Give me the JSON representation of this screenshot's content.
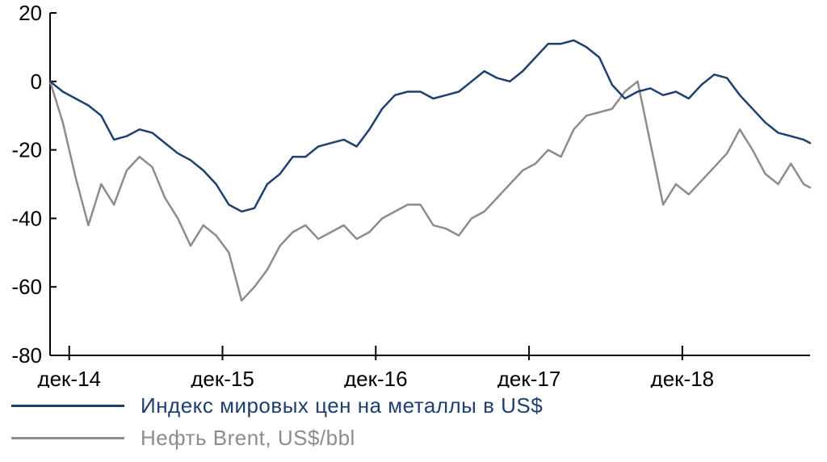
{
  "chart_data": {
    "type": "line",
    "ylim": [
      -80,
      20
    ],
    "yticks": [
      20,
      0,
      -20,
      -40,
      -60,
      -80
    ],
    "xlim": [
      0,
      59.5
    ],
    "xticks": [
      {
        "label": "дек-14",
        "x": 1.5
      },
      {
        "label": "дек-15",
        "x": 13.5
      },
      {
        "label": "дек-16",
        "x": 25.5
      },
      {
        "label": "дек-17",
        "x": 37.5
      },
      {
        "label": "дек-18",
        "x": 49.5
      }
    ],
    "grid": false,
    "legend": "bottom-left",
    "series": [
      {
        "name": "Индекс мировых цен на металлы в US$",
        "color": "#1f3f6e",
        "x": [
          0,
          1,
          2,
          3,
          4,
          5,
          6,
          7,
          8,
          9,
          10,
          11,
          12,
          13,
          14,
          15,
          16,
          17,
          18,
          19,
          20,
          21,
          22,
          23,
          24,
          25,
          26,
          27,
          28,
          29,
          30,
          31,
          32,
          33,
          34,
          35,
          36,
          37,
          38,
          39,
          40,
          41,
          42,
          43,
          44,
          45,
          46,
          47,
          48,
          49,
          50,
          51,
          52,
          53,
          54,
          55,
          56,
          57,
          58,
          59,
          59.5
        ],
        "values": [
          0,
          -3,
          -5,
          -7,
          -10,
          -17,
          -16,
          -14,
          -15,
          -18,
          -21,
          -23,
          -26,
          -30,
          -36,
          -38,
          -37,
          -30,
          -27,
          -22,
          -22,
          -19,
          -18,
          -17,
          -19,
          -14,
          -8,
          -4,
          -3,
          -3,
          -5,
          -4,
          -3,
          0,
          3,
          1,
          0,
          3,
          7,
          11,
          11,
          12,
          10,
          7,
          -1,
          -5,
          -3,
          -2,
          -4,
          -3,
          -5,
          -1,
          2,
          1,
          -4,
          -8,
          -12,
          -15,
          -16,
          -17,
          -18
        ]
      },
      {
        "name": "Нефть Brent, US$/bbl",
        "color": "#8c8c8c",
        "x": [
          0,
          1,
          2,
          3,
          4,
          5,
          6,
          7,
          8,
          9,
          10,
          11,
          12,
          13,
          14,
          15,
          16,
          17,
          18,
          19,
          20,
          21,
          22,
          23,
          24,
          25,
          26,
          27,
          28,
          29,
          30,
          31,
          32,
          33,
          34,
          35,
          36,
          37,
          38,
          39,
          40,
          41,
          42,
          43,
          44,
          45,
          46,
          47,
          48,
          49,
          50,
          51,
          52,
          53,
          54,
          55,
          56,
          57,
          58,
          59,
          59.5
        ],
        "values": [
          0,
          -12,
          -28,
          -42,
          -30,
          -36,
          -26,
          -22,
          -25,
          -34,
          -40,
          -48,
          -42,
          -45,
          -50,
          -64,
          -60,
          -55,
          -48,
          -44,
          -42,
          -46,
          -44,
          -42,
          -46,
          -44,
          -40,
          -38,
          -36,
          -36,
          -42,
          -43,
          -45,
          -40,
          -38,
          -34,
          -30,
          -26,
          -24,
          -20,
          -22,
          -14,
          -10,
          -9,
          -8,
          -3,
          0,
          -18,
          -36,
          -30,
          -33,
          -29,
          -25,
          -21,
          -14,
          -20,
          -27,
          -30,
          -24,
          -30,
          -31
        ]
      }
    ]
  }
}
